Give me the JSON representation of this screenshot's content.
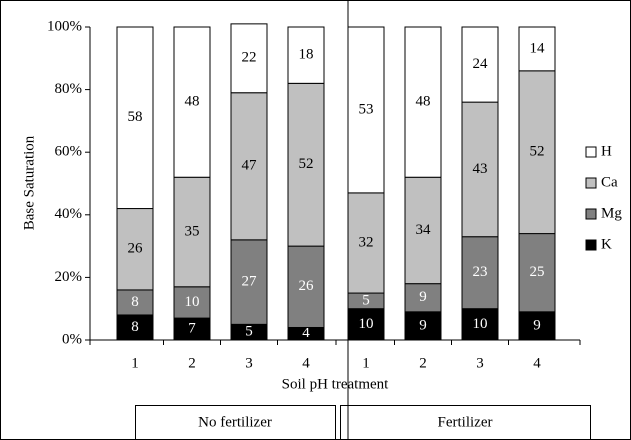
{
  "chart_data": {
    "type": "stacked_bar",
    "y_label": "Base Saturation",
    "x_label": "Soil pH treatment",
    "categories": [
      "1",
      "2",
      "3",
      "4",
      "1",
      "2",
      "3",
      "4"
    ],
    "groups": [
      "No fertilizer",
      "Fertilizer"
    ],
    "series": [
      {
        "name": "K",
        "color": "#000000",
        "label_color": "#ffffff",
        "values": [
          8,
          7,
          5,
          4,
          10,
          9,
          10,
          9
        ]
      },
      {
        "name": "Mg",
        "color": "#808080",
        "label_color": "#ffffff",
        "values": [
          8,
          10,
          27,
          26,
          5,
          9,
          23,
          25
        ]
      },
      {
        "name": "Ca",
        "color": "#c0c0c0",
        "label_color": "#000000",
        "values": [
          26,
          35,
          47,
          52,
          32,
          34,
          43,
          52
        ]
      },
      {
        "name": "H",
        "color": "#ffffff",
        "label_color": "#000000",
        "values": [
          58,
          48,
          22,
          18,
          53,
          48,
          24,
          14
        ]
      }
    ],
    "ylim": [
      0,
      100
    ],
    "yticks": [
      {
        "value": 0,
        "label": "0%"
      },
      {
        "value": 20,
        "label": "20%"
      },
      {
        "value": 40,
        "label": "40%"
      },
      {
        "value": 60,
        "label": "60%"
      },
      {
        "value": 80,
        "label": "80%"
      },
      {
        "value": 100,
        "label": "100%"
      }
    ],
    "legend": "right"
  }
}
